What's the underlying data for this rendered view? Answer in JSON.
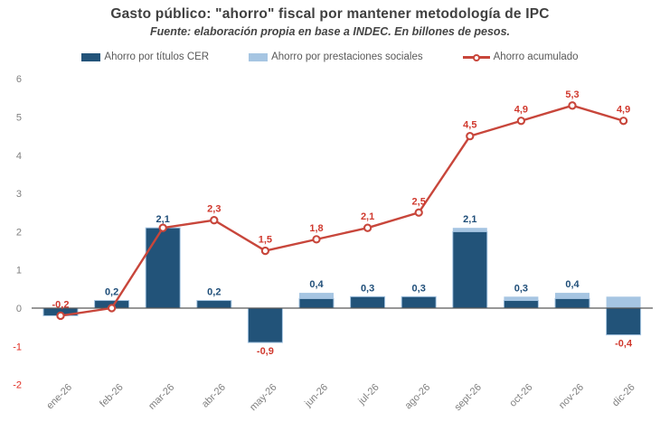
{
  "chart": {
    "title": "Gasto público: \"ahorro\" fiscal por mantener metodología  de IPC",
    "subtitle": "Fuente: elaboración propia en base a INDEC. En billones de pesos.",
    "legend": [
      "Ahorro por títulos CER",
      "Ahorro por prestaciones sociales",
      "Ahorro acumulado"
    ]
  },
  "colors": {
    "bar_dark_blue": "#225379",
    "bar_light_blue": "#A6C5E2",
    "line_red": "#C8463B",
    "red_label": "#D0392E",
    "blue_label": "#1F4E79",
    "axis_gray": "#595959",
    "tick_gray": "#7F7F7F",
    "negative_tick_red": "#E02B20",
    "title_gray": "#3F3F3F",
    "background": "#FFFFFF"
  },
  "chart_data": {
    "type": "bar",
    "combo": "stacked-bars-plus-line",
    "title": "Gasto público: \"ahorro\" fiscal por mantener metodología  de IPC",
    "subtitle": "Fuente: elaboración propia en base a INDEC. En billones de pesos.",
    "categories": [
      "ene-26",
      "feb-26",
      "mar-26",
      "abr-26",
      "may-26",
      "jun-26",
      "jul-26",
      "ago-26",
      "sept-26",
      "oct-26",
      "nov-26",
      "dic-26"
    ],
    "series": [
      {
        "name": "Ahorro por títulos CER",
        "type": "bar",
        "values": [
          -0.2,
          0.2,
          2.1,
          0.2,
          -0.9,
          0.25,
          0.3,
          0.3,
          2.0,
          0.2,
          0.25,
          -0.7
        ]
      },
      {
        "name": "Ahorro por prestaciones sociales",
        "type": "bar",
        "values": [
          0,
          0,
          0,
          0,
          0,
          0.15,
          0,
          0,
          0.1,
          0.1,
          0.15,
          0.3
        ]
      },
      {
        "name": "Ahorro acumulado",
        "type": "line",
        "values": [
          -0.2,
          0.0,
          2.1,
          2.3,
          1.5,
          1.8,
          2.1,
          2.5,
          4.5,
          4.9,
          5.3,
          4.9
        ]
      }
    ],
    "bar_total_labels": [
      "",
      "0,2",
      "2,1",
      "0,2",
      "-0,9",
      "0,4",
      "0,3",
      "0,3",
      "2,1",
      "0,3",
      "0,4",
      "-0,4"
    ],
    "line_point_labels": [
      "-0,2",
      "",
      "",
      "2,3",
      "1,5",
      "1,8",
      "2,1",
      "2,5",
      "4,5",
      "4,9",
      "5,3",
      "4,9"
    ],
    "ylim": [
      -2,
      6
    ],
    "yticks": [
      6,
      5,
      4,
      3,
      2,
      1,
      0,
      -1,
      -2
    ],
    "grid": false,
    "legend_position": "top",
    "xlabel": "",
    "ylabel": ""
  }
}
